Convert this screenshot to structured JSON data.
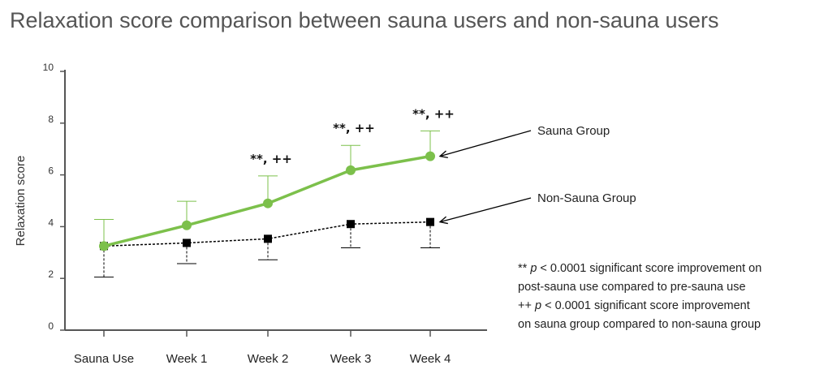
{
  "title": "Relaxation score comparison between sauna users and non-sauna users",
  "chart_data": {
    "type": "line",
    "title": "Relaxation score comparison between sauna users and non-sauna users",
    "ylabel": "Relaxation score",
    "xlabel": "",
    "ylim": [
      0,
      10
    ],
    "yticks": [
      0,
      2,
      4,
      6,
      8,
      10
    ],
    "categories": [
      "Sauna Use",
      "Week 1",
      "Week 2",
      "Week 3",
      "Week 4"
    ],
    "grid": false,
    "series": [
      {
        "name": "Sauna Group",
        "color": "#7cc04b",
        "marker": "circle",
        "line_style": "solid",
        "error_direction": "up",
        "values": [
          3.25,
          4.05,
          4.9,
          6.18,
          6.72
        ],
        "error_bar_ends": [
          4.28,
          4.98,
          5.96,
          7.14,
          7.7
        ]
      },
      {
        "name": "Non-Sauna Group",
        "color": "#000000",
        "marker": "square",
        "line_style": "dashed",
        "error_direction": "down",
        "values": [
          3.25,
          3.37,
          3.53,
          4.1,
          4.18
        ],
        "error_bar_ends": [
          2.05,
          2.57,
          2.72,
          3.18,
          3.18
        ]
      }
    ],
    "significance": [
      "",
      "",
      "**, ++",
      "**, ++",
      "**, ++"
    ],
    "footnote": [
      {
        "marker": "**",
        "p": "p",
        "text": " < 0.0001 significant score improvement on"
      },
      {
        "text": "post-sauna use compared to pre-sauna use"
      },
      {
        "marker": "++",
        "p": "p",
        "text": " < 0.0001 significant score improvement"
      },
      {
        "text": "on sauna group compared to non-sauna group"
      }
    ]
  }
}
